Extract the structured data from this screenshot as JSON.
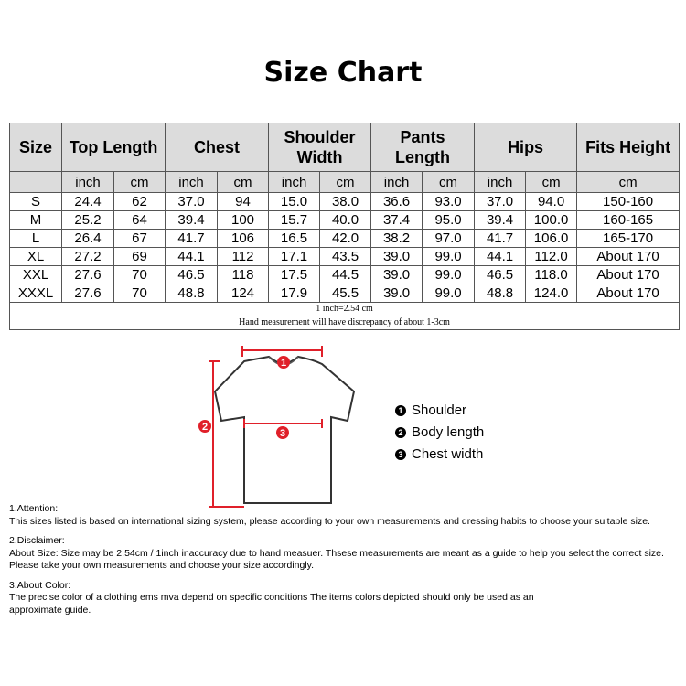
{
  "title": "Size Chart",
  "headers": [
    "Size",
    "Top Length",
    "Chest",
    "Shoulder Width",
    "Pants Length",
    "Hips",
    "Fits Height"
  ],
  "units": {
    "inch": "inch",
    "cm": "cm"
  },
  "rows": [
    [
      "S",
      "24.4",
      "62",
      "37.0",
      "94",
      "15.0",
      "38.0",
      "36.6",
      "93.0",
      "37.0",
      "94.0",
      "150-160"
    ],
    [
      "M",
      "25.2",
      "64",
      "39.4",
      "100",
      "15.7",
      "40.0",
      "37.4",
      "95.0",
      "39.4",
      "100.0",
      "160-165"
    ],
    [
      "L",
      "26.4",
      "67",
      "41.7",
      "106",
      "16.5",
      "42.0",
      "38.2",
      "97.0",
      "41.7",
      "106.0",
      "165-170"
    ],
    [
      "XL",
      "27.2",
      "69",
      "44.1",
      "112",
      "17.1",
      "43.5",
      "39.0",
      "99.0",
      "44.1",
      "112.0",
      "About 170"
    ],
    [
      "XXL",
      "27.6",
      "70",
      "46.5",
      "118",
      "17.5",
      "44.5",
      "39.0",
      "99.0",
      "46.5",
      "118.0",
      "About 170"
    ],
    [
      "XXXL",
      "27.6",
      "70",
      "48.8",
      "124",
      "17.9",
      "45.5",
      "39.0",
      "99.0",
      "48.8",
      "124.0",
      "About 170"
    ]
  ],
  "table_notes": [
    "1 inch=2.54 cm",
    "Hand measurement will have discrepancy of about 1-3cm"
  ],
  "diagram": {
    "markers": [
      "1",
      "2",
      "3"
    ],
    "legend": [
      {
        "num": "1",
        "label": "Shoulder"
      },
      {
        "num": "2",
        "label": "Body length"
      },
      {
        "num": "3",
        "label": "Chest width"
      }
    ],
    "accent": "#e0202a"
  },
  "notes": [
    {
      "heading": "1.Attention:",
      "text": "This sizes listed is based on international sizing system, please according to your own measurements and dressing habits to choose your suitable size."
    },
    {
      "heading": "2.Disclaimer:",
      "text": "About Size: Size may be 2.54cm / 1inch inaccuracy due to hand measuer. Thsese measurements are meant as a guide to help you select the correct size. Please take your own measurements and choose your size accordingly."
    },
    {
      "heading": "3.About Color:",
      "text": "The precise color of a clothing ems mva depend on specific conditions The items colors depicted should only be used as an approximate guide."
    }
  ]
}
